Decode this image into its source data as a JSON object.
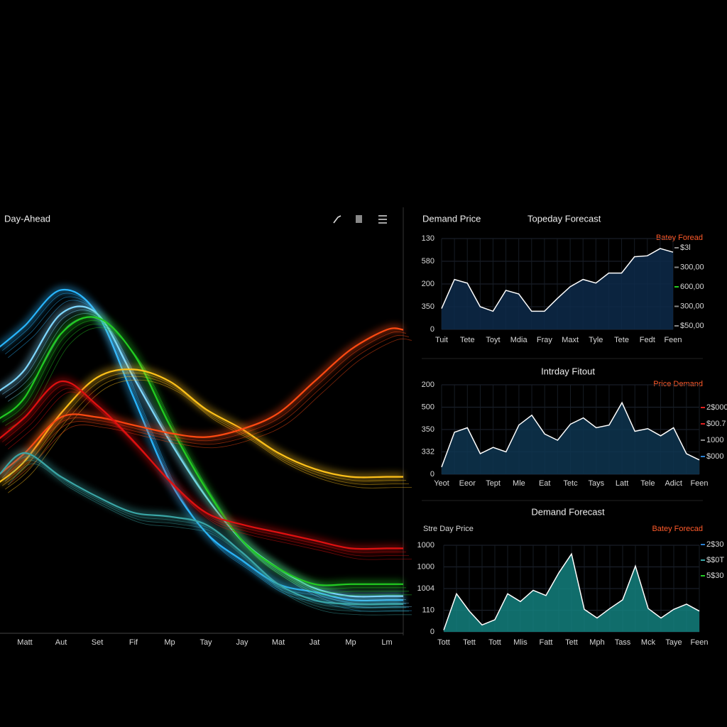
{
  "chart_data": [
    {
      "type": "line",
      "title": "Day-Ahead",
      "categories": [
        "Matt",
        "Aut",
        "Set",
        "Fif",
        "Mp",
        "Tay",
        "Jay",
        "Mat",
        "Jat",
        "Mp",
        "Lm"
      ],
      "ylim": [
        0,
        100
      ],
      "series": [
        {
          "color": "#29b6ff",
          "values": [
            77,
            86,
            80,
            59,
            38,
            25,
            18,
            12,
            10,
            8,
            8
          ]
        },
        {
          "color": "#7fd8ff",
          "values": [
            66,
            80,
            80,
            64,
            48,
            34,
            23,
            16,
            11,
            9,
            9
          ]
        },
        {
          "color": "#22cc22",
          "values": [
            59,
            75,
            79,
            70,
            52,
            36,
            23,
            16,
            12,
            12,
            12
          ]
        },
        {
          "color": "#ffc21a",
          "values": [
            43,
            55,
            64,
            66,
            63,
            56,
            51,
            45,
            41,
            39,
            39
          ]
        },
        {
          "color": "#ff4a12",
          "values": [
            45,
            54,
            54,
            52,
            50,
            49,
            51,
            55,
            63,
            71,
            76
          ]
        },
        {
          "color": "#e01010",
          "values": [
            54,
            63,
            57,
            48,
            38,
            30,
            27,
            25,
            23,
            21,
            21
          ]
        },
        {
          "color": "#3aa6a6",
          "values": [
            45,
            39,
            34,
            30,
            29,
            27,
            20,
            12,
            8,
            7,
            7
          ]
        }
      ]
    },
    {
      "type": "area",
      "title": "Demand Price",
      "subtitle": "Topeday Forecast",
      "legend": "Batey Foread",
      "legend_color": "#ff5a2a",
      "y_labels": [
        "130",
        "580",
        "200",
        "350",
        "0"
      ],
      "side_labels": [
        "$3l",
        "300,00",
        "600,00",
        "300,00",
        "$50,00"
      ],
      "side_colors": [
        "#888888",
        "#888888",
        "#22cc22",
        "#888888",
        "#888888"
      ],
      "categories": [
        "Tuit",
        null,
        "Tete",
        null,
        "Toyt",
        null,
        "Mdia",
        null,
        "Fray",
        null,
        "Maxt",
        null,
        "Tyle",
        null,
        "Tete",
        null,
        "Fedt",
        null,
        "Feen"
      ],
      "ylim": [
        0,
        100
      ],
      "color": "#ffffff",
      "fill": "#0d2a4a",
      "values": [
        23,
        55,
        51,
        25,
        20,
        43,
        39,
        20,
        20,
        34,
        47,
        55,
        51,
        62,
        62,
        80,
        81,
        89,
        85
      ]
    },
    {
      "type": "area",
      "title": "Intrday Fitout",
      "legend": "Price Demand",
      "legend_color": "#ff5a2a",
      "y_labels": [
        "200",
        "500",
        "350",
        "332",
        "0"
      ],
      "side_labels": [
        "2$000",
        "$00.7",
        "1000",
        "$000"
      ],
      "side_colors": [
        "#e02020",
        "#e02020",
        "#888888",
        "#2a7fd0"
      ],
      "categories": [
        "Yeot",
        null,
        "Eeor",
        null,
        "Tept",
        null,
        "Mle",
        null,
        "Eat",
        null,
        "Tetc",
        null,
        "Tays",
        null,
        "Latt",
        null,
        "Tele",
        null,
        "Adict",
        null,
        "Feen"
      ],
      "ylim": [
        0,
        100
      ],
      "color": "#ffffff",
      "fill": "#0e3550",
      "values": [
        8,
        47,
        52,
        23,
        30,
        25,
        55,
        66,
        45,
        38,
        56,
        63,
        52,
        55,
        80,
        48,
        51,
        43,
        52,
        23,
        16
      ]
    },
    {
      "type": "area",
      "title": "Demand Forecast",
      "subtitle": "Stre Day Price",
      "legend": "Batey Forecad",
      "legend_color": "#ff5a2a",
      "y_labels": [
        "1000",
        "1000",
        "1004",
        "110",
        "0"
      ],
      "side_labels": [
        "2$30",
        "$$0T",
        "5$30"
      ],
      "side_colors": [
        "#2a7fd0",
        "#3aa6a6",
        "#22cc22"
      ],
      "categories": [
        "Tott",
        null,
        "Tett",
        null,
        "Tott",
        null,
        "Mlis",
        null,
        "Fatt",
        null,
        "Tett",
        null,
        "Mph",
        null,
        "Tass",
        null,
        "Mck",
        null,
        "Taye",
        null,
        "Feen"
      ],
      "ylim": [
        0,
        100
      ],
      "color": "#ffffff",
      "fill": "#13807e",
      "values": [
        2,
        44,
        24,
        8,
        14,
        44,
        35,
        48,
        42,
        68,
        90,
        26,
        16,
        27,
        37,
        76,
        27,
        16,
        26,
        32,
        24
      ]
    }
  ]
}
